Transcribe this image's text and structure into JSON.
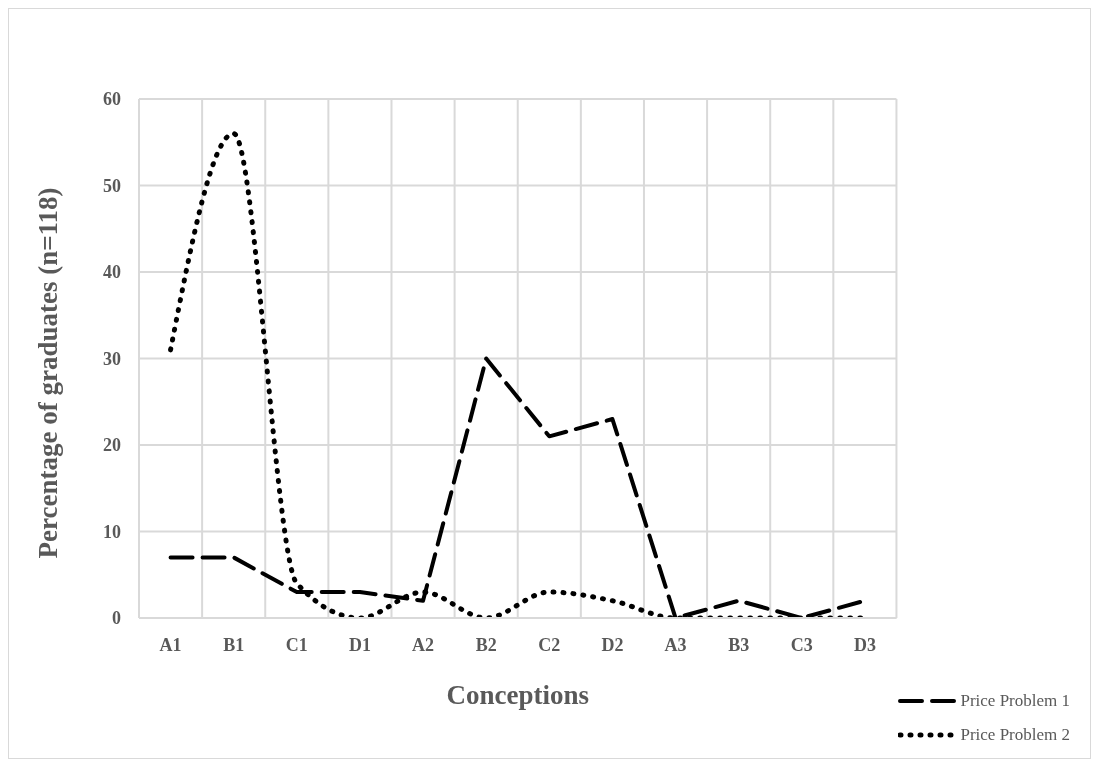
{
  "chart_data": {
    "type": "line",
    "xlabel": "Conceptions",
    "ylabel": "Percentage of graduates (n=118)",
    "categories": [
      "A1",
      "B1",
      "C1",
      "D1",
      "A2",
      "B2",
      "C2",
      "D2",
      "A3",
      "B3",
      "C3",
      "D3"
    ],
    "series": [
      {
        "name": "Price Problem 1",
        "color": "#000000",
        "line_style": "dashed",
        "values": [
          7,
          7,
          3,
          3,
          2,
          30,
          21,
          23,
          0,
          2,
          0,
          2
        ]
      },
      {
        "name": "Price Problem 2",
        "color": "#000000",
        "line_style": "dotted",
        "values": [
          31,
          56,
          4,
          0,
          3,
          0,
          3,
          2,
          0,
          0,
          0,
          0
        ]
      }
    ],
    "ylim": [
      0,
      60
    ],
    "yticks": [
      0,
      10,
      20,
      30,
      40,
      50,
      60
    ],
    "grid": true,
    "legend": "bottom right",
    "marker": "none"
  }
}
